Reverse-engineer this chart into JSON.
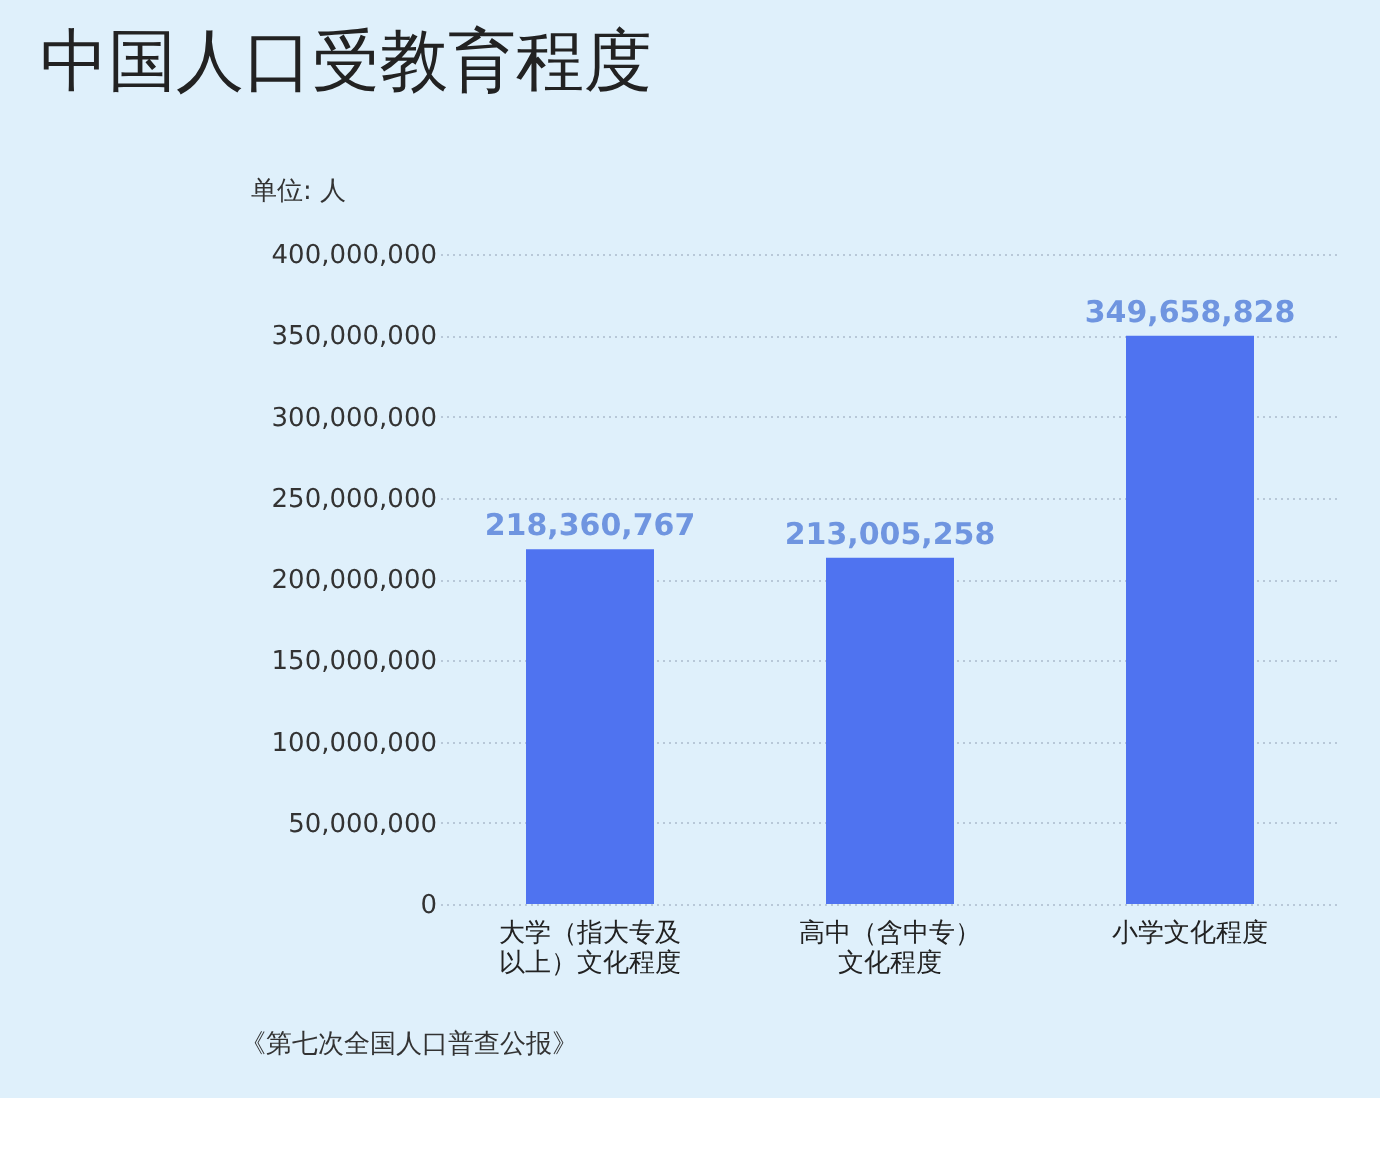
{
  "chart_data": {
    "type": "bar",
    "title": "中国人口受教育程度",
    "ylabel": "单位: 人",
    "categories": [
      "大学（指大专及以上）文化程度",
      "高中（含中专）文化程度",
      "小学文化程度"
    ],
    "values": [
      218360767,
      213005258,
      349658828
    ],
    "value_labels": [
      "218,360,767",
      "213,005,258",
      "349,658,828"
    ],
    "color": "#4f73f0",
    "ylim": [
      0,
      400000000
    ],
    "yticks": [
      0,
      {
        "value": 50000000,
        "label": "50,000,000"
      },
      {
        "value": 100000000,
        "label": "100,000,000"
      },
      {
        "value": 150000000,
        "label": "150,000,000"
      },
      {
        "value": 200000000,
        "label": "200,000,000"
      },
      {
        "value": 250000000,
        "label": "250,000,000"
      },
      {
        "value": 300000000,
        "label": "300,000,000"
      },
      {
        "value": 350000000,
        "label": "350,000,000"
      },
      {
        "value": 400000000,
        "label": "400,000,000"
      }
    ],
    "grid": "y",
    "annotations": [
      "《第七次全国人口普查公报》"
    ]
  }
}
